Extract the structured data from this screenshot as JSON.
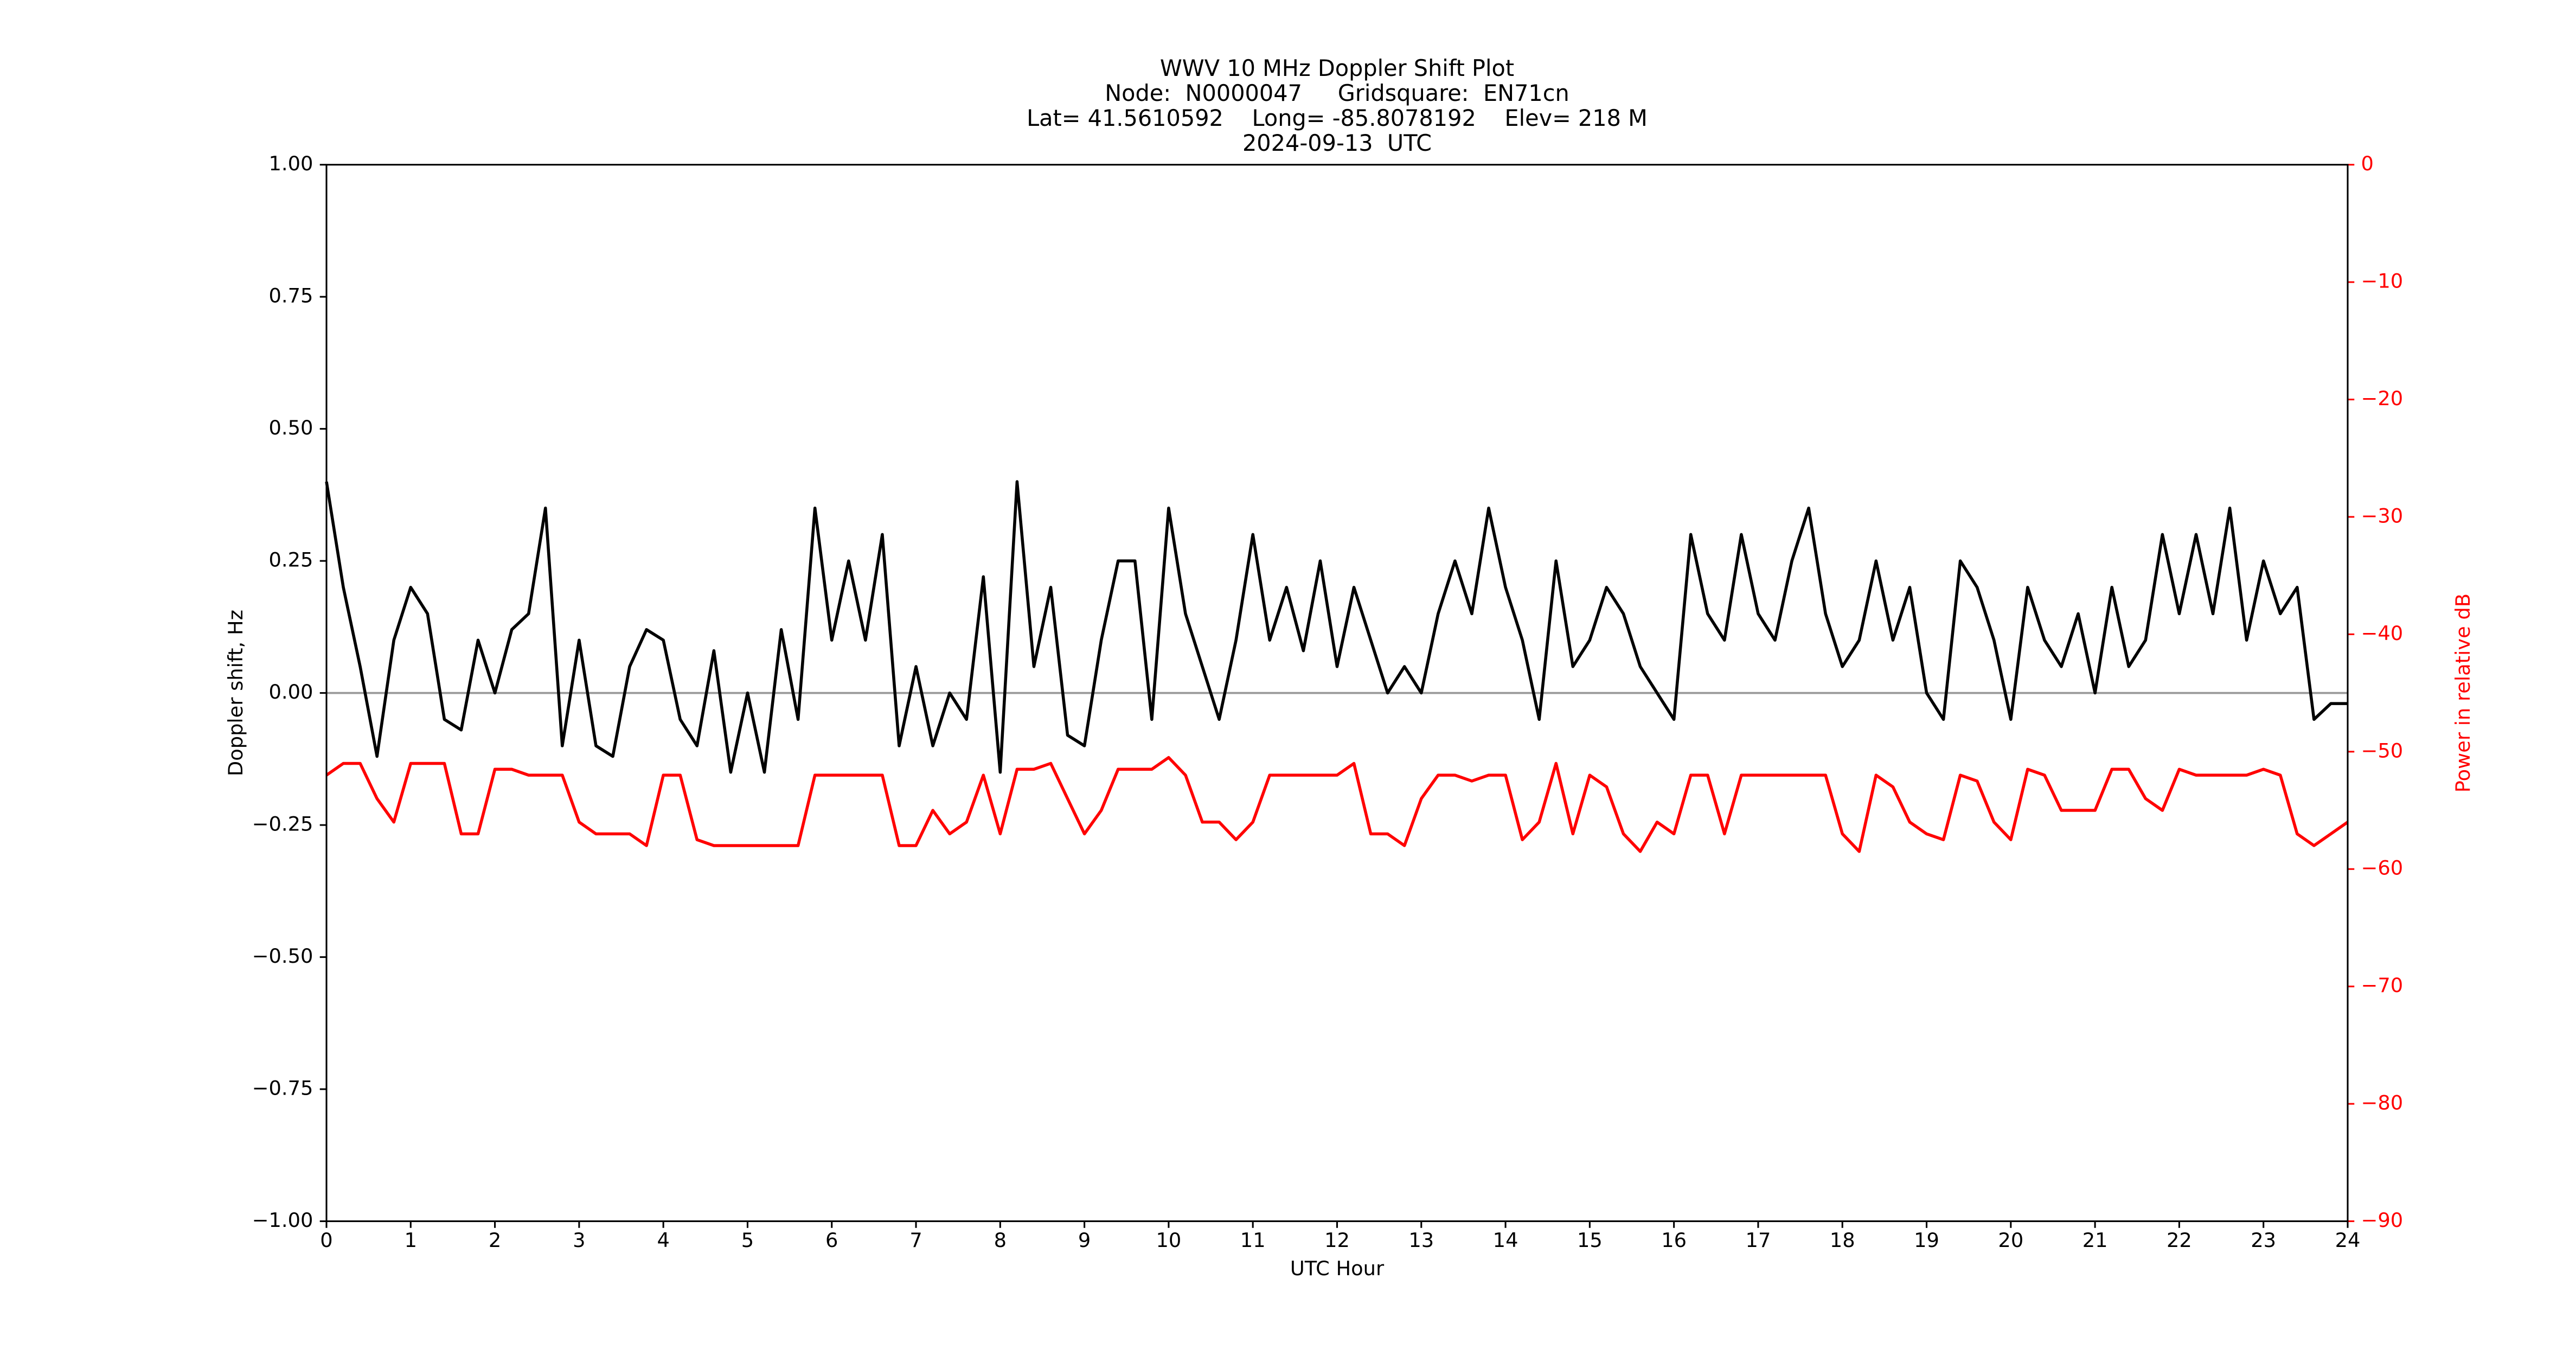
{
  "chart_data": {
    "type": "line",
    "title": [
      "WWV 10 MHz Doppler Shift Plot",
      "Node:  N0000047     Gridsquare:  EN71cn",
      "Lat= 41.5610592    Long= -85.8078192    Elev= 218 M",
      "2024-09-13  UTC"
    ],
    "xlabel": "UTC Hour",
    "ylabel": "Doppler shift, Hz",
    "y2label": "Power in relative dB",
    "x": [
      0,
      0.2,
      0.4,
      0.6,
      0.8,
      1,
      1.2,
      1.4,
      1.6,
      1.8,
      2,
      2.2,
      2.4,
      2.6,
      2.8,
      3,
      3.2,
      3.4,
      3.6,
      3.8,
      4,
      4.2,
      4.4,
      4.6,
      4.8,
      5,
      5.2,
      5.4,
      5.6,
      5.8,
      6,
      6.2,
      6.4,
      6.6,
      6.8,
      7,
      7.2,
      7.4,
      7.6,
      7.8,
      8,
      8.2,
      8.4,
      8.6,
      8.8,
      9,
      9.2,
      9.4,
      9.6,
      9.8,
      10,
      10.2,
      10.4,
      10.6,
      10.8,
      11,
      11.2,
      11.4,
      11.6,
      11.8,
      12,
      12.2,
      12.4,
      12.6,
      12.8,
      13,
      13.2,
      13.4,
      13.6,
      13.8,
      14,
      14.2,
      14.4,
      14.6,
      14.8,
      15,
      15.2,
      15.4,
      15.6,
      15.8,
      16,
      16.2,
      16.4,
      16.6,
      16.8,
      17,
      17.2,
      17.4,
      17.6,
      17.8,
      18,
      18.2,
      18.4,
      18.6,
      18.8,
      19,
      19.2,
      19.4,
      19.6,
      19.8,
      20,
      20.2,
      20.4,
      20.6,
      20.8,
      21,
      21.2,
      21.4,
      21.6,
      21.8,
      22,
      22.2,
      22.4,
      22.6,
      22.8,
      23,
      23.2,
      23.4,
      23.6,
      23.8,
      24
    ],
    "series": [
      {
        "color": "#000000",
        "values": [
          0.4,
          0.2,
          0.05,
          -0.12,
          0.1,
          0.2,
          0.15,
          -0.05,
          -0.07,
          0.1,
          0.0,
          0.12,
          0.15,
          0.35,
          -0.1,
          0.1,
          -0.1,
          -0.12,
          0.05,
          0.12,
          0.1,
          -0.05,
          -0.1,
          0.08,
          -0.15,
          0.0,
          -0.15,
          0.12,
          -0.05,
          0.35,
          0.1,
          0.25,
          0.1,
          0.3,
          -0.1,
          0.05,
          -0.1,
          0.0,
          -0.05,
          0.22,
          -0.15,
          0.4,
          0.05,
          0.2,
          -0.08,
          -0.1,
          0.1,
          0.25,
          0.25,
          -0.05,
          0.35,
          0.15,
          0.05,
          -0.05,
          0.1,
          0.3,
          0.1,
          0.2,
          0.08,
          0.25,
          0.05,
          0.2,
          0.1,
          0.0,
          0.05,
          0.0,
          0.15,
          0.25,
          0.15,
          0.35,
          0.2,
          0.1,
          -0.05,
          0.25,
          0.05,
          0.1,
          0.2,
          0.15,
          0.05,
          0.0,
          -0.05,
          0.3,
          0.15,
          0.1,
          0.3,
          0.15,
          0.1,
          0.25,
          0.35,
          0.15,
          0.05,
          0.1,
          0.25,
          0.1,
          0.2,
          0.0,
          -0.05,
          0.25,
          0.2,
          0.1,
          -0.05,
          0.2,
          0.1,
          0.05,
          0.15,
          0.0,
          0.2,
          0.05,
          0.1,
          0.3,
          0.15,
          0.3,
          0.15,
          0.35,
          0.1,
          0.25,
          0.15,
          0.2,
          -0.05,
          -0.02,
          -0.02
        ]
      },
      {
        "color": "#ff0000",
        "axis": "y2",
        "values": [
          -52,
          -51,
          -51,
          -54,
          -56,
          -51,
          -51,
          -51,
          -57,
          -57,
          -51.5,
          -51.5,
          -52,
          -52,
          -52,
          -56,
          -57,
          -57,
          -57,
          -58,
          -52,
          -52,
          -57.5,
          -58,
          -58,
          -58,
          -58,
          -58,
          -58,
          -52,
          -52,
          -52,
          -52,
          -52,
          -58,
          -58,
          -55,
          -57,
          -56,
          -52,
          -57,
          -51.5,
          -51.5,
          -51,
          -54,
          -57,
          -55,
          -51.5,
          -51.5,
          -51.5,
          -50.5,
          -52,
          -56,
          -56,
          -57.5,
          -56,
          -52,
          -52,
          -52,
          -52,
          -52,
          -51,
          -57,
          -57,
          -58,
          -54,
          -52,
          -52,
          -52.5,
          -52,
          -52,
          -57.5,
          -56,
          -51,
          -57,
          -52,
          -53,
          -57,
          -58.5,
          -56,
          -57,
          -52,
          -52,
          -57,
          -52,
          -52,
          -52,
          -52,
          -52,
          -52,
          -57,
          -58.5,
          -52,
          -53,
          -56,
          -57,
          -57.5,
          -52,
          -52.5,
          -56,
          -57.5,
          -51.5,
          -52,
          -55,
          -55,
          -55,
          -51.5,
          -51.5,
          -54,
          -55,
          -51.5,
          -52,
          -52,
          -52,
          -52,
          -51.5,
          -52,
          -57,
          -58,
          -57,
          -56
        ]
      }
    ],
    "xlim": [
      0,
      24
    ],
    "xticks": [
      0,
      1,
      2,
      3,
      4,
      5,
      6,
      7,
      8,
      9,
      10,
      11,
      12,
      13,
      14,
      15,
      16,
      17,
      18,
      19,
      20,
      21,
      22,
      23,
      24
    ],
    "ylim": [
      -1,
      1
    ],
    "yticks": [
      {
        "value": -1,
        "label": "−1.00"
      },
      {
        "value": -0.75,
        "label": "−0.75"
      },
      {
        "value": -0.5,
        "label": "−0.50"
      },
      {
        "value": -0.25,
        "label": "−0.25"
      },
      {
        "value": 0,
        "label": "0.00"
      },
      {
        "value": 0.25,
        "label": "0.25"
      },
      {
        "value": 0.5,
        "label": "0.50"
      },
      {
        "value": 0.75,
        "label": "0.75"
      },
      {
        "value": 1,
        "label": "1.00"
      }
    ],
    "y2lim": [
      -90,
      0
    ],
    "y2ticks": [
      {
        "value": -90,
        "label": "−90"
      },
      {
        "value": -80,
        "label": "−80"
      },
      {
        "value": -70,
        "label": "−70"
      },
      {
        "value": -60,
        "label": "−60"
      },
      {
        "value": -50,
        "label": "−50"
      },
      {
        "value": -40,
        "label": "−40"
      },
      {
        "value": -30,
        "label": "−30"
      },
      {
        "value": -20,
        "label": "−20"
      },
      {
        "value": -10,
        "label": "−10"
      },
      0
    ],
    "y2color": "#ff0000",
    "hline": 0,
    "hline_color": "#999999"
  }
}
